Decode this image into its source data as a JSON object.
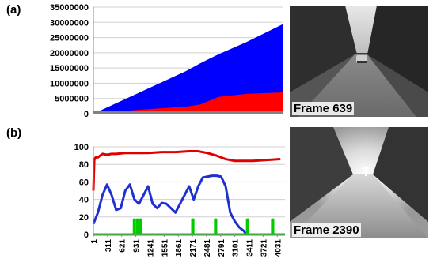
{
  "figure": {
    "panel_a_label": "(a)",
    "panel_b_label": "(b)",
    "frame_a_caption": "Frame 639",
    "frame_b_caption": "Frame 2390"
  },
  "colors": {
    "blue_area": "#0000ff",
    "red_area": "#ff0000",
    "gray_base": "#808080",
    "red_line": "#e00000",
    "blue_line": "#1f2fd0",
    "green_line": "#00cc00"
  },
  "chart_data": [
    {
      "type": "area",
      "panel": "a",
      "ylim": [
        0,
        35000000
      ],
      "y_ticks": [
        "0",
        "5000000",
        "10000000",
        "15000000",
        "20000000",
        "25000000",
        "30000000",
        "35000000"
      ],
      "x": [
        0,
        500,
        1000,
        1500,
        2000,
        2300,
        2700,
        3300,
        4100
      ],
      "series": [
        {
          "values": [
            0,
            3500000,
            7000000,
            10500000,
            14000000,
            16500000,
            19500000,
            23500000,
            29500000
          ]
        },
        {
          "values": [
            0,
            700000,
            1300000,
            1800000,
            2300000,
            3000000,
            5500000,
            6500000,
            7000000
          ]
        },
        {
          "values": [
            800000,
            800000,
            800000,
            800000,
            800000,
            800000,
            800000,
            800000,
            800000
          ]
        }
      ]
    },
    {
      "type": "line",
      "panel": "b",
      "ylim": [
        0,
        100
      ],
      "y_ticks": [
        "0",
        "20",
        "40",
        "60",
        "80",
        "100"
      ],
      "x_ticks": [
        "1",
        "311",
        "621",
        "931",
        "1241",
        "1551",
        "1861",
        "2171",
        "2481",
        "2791",
        "3101",
        "3411",
        "3721",
        "4031"
      ],
      "series": [
        {
          "x": [
            1,
            20,
            50,
            100,
            200,
            300,
            400,
            500,
            700,
            900,
            1200,
            1500,
            1800,
            2100,
            2300,
            2500,
            2700,
            2900,
            3100,
            3300,
            3500,
            3800,
            4100
          ],
          "values": [
            50,
            85,
            88,
            88,
            92,
            91,
            92,
            92,
            93,
            93,
            93,
            94,
            94,
            95,
            95,
            93,
            90,
            86,
            84,
            84,
            84,
            85,
            86
          ]
        },
        {
          "x": [
            1,
            100,
            200,
            300,
            400,
            500,
            600,
            700,
            800,
            900,
            1000,
            1100,
            1200,
            1300,
            1400,
            1500,
            1600,
            1700,
            1800,
            1900,
            2000,
            2100,
            2200,
            2300,
            2400,
            2500,
            2600,
            2700,
            2800,
            2900,
            3000,
            3100,
            3200,
            3300,
            3350
          ],
          "values": [
            12,
            25,
            45,
            57,
            45,
            28,
            30,
            50,
            57,
            40,
            35,
            45,
            55,
            35,
            30,
            36,
            35,
            30,
            25,
            35,
            45,
            55,
            40,
            55,
            65,
            66,
            67,
            67,
            66,
            55,
            25,
            15,
            8,
            4,
            0
          ]
        },
        {
          "x": [
            0,
            890,
            890,
            905,
            905,
            960,
            960,
            975,
            975,
            1030,
            1030,
            1045,
            1045,
            2170,
            2170,
            2190,
            2190,
            2670,
            2670,
            2690,
            2690,
            3370,
            3370,
            3390,
            3390,
            3920,
            3920,
            3940,
            3940,
            4200
          ],
          "values": [
            0,
            0,
            17,
            17,
            0,
            0,
            17,
            17,
            0,
            0,
            17,
            17,
            0,
            0,
            17,
            17,
            0,
            0,
            17,
            17,
            0,
            0,
            17,
            17,
            0,
            0,
            17,
            17,
            0,
            0
          ]
        }
      ]
    }
  ]
}
